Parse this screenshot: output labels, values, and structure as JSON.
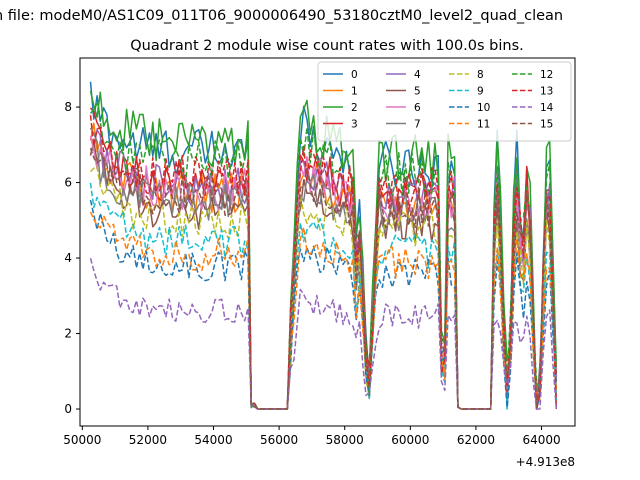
{
  "chart_data": {
    "type": "line",
    "suptitle": "n file: modeM0/AS1C09_011T06_9000006490_53180cztM0_level2_quad_clean",
    "title": "Quadrant 2 module wise count rates with 100.0s bins.",
    "xlabel": "",
    "ylabel": "",
    "x_offset_label": "+4.913e8",
    "xlim": [
      49930,
      65020
    ],
    "ylim": [
      -0.45,
      9.3
    ],
    "x_ticks": [
      50000,
      52000,
      54000,
      56000,
      58000,
      60000,
      62000,
      64000
    ],
    "x_tick_labels": [
      "50000",
      "52000",
      "54000",
      "56000",
      "58000",
      "60000",
      "62000",
      "64000"
    ],
    "y_ticks": [
      0,
      2,
      4,
      6,
      8
    ],
    "y_tick_labels": [
      "0",
      "2",
      "4",
      "6",
      "8"
    ],
    "grid": false,
    "legend_position": "top-right",
    "legend_columns": 4,
    "series": [
      {
        "name": "0",
        "color": "#1f77b4",
        "dash": "solid",
        "base": 6.8,
        "start": 8.2
      },
      {
        "name": "1",
        "color": "#ff7f0e",
        "dash": "solid",
        "base": 5.7,
        "start": 7.5
      },
      {
        "name": "2",
        "color": "#2ca02c",
        "dash": "solid",
        "base": 7.0,
        "start": 8.5
      },
      {
        "name": "3",
        "color": "#d62728",
        "dash": "solid",
        "base": 6.0,
        "start": 7.7
      },
      {
        "name": "4",
        "color": "#9467bd",
        "dash": "solid",
        "base": 5.9,
        "start": 7.3
      },
      {
        "name": "5",
        "color": "#8c564b",
        "dash": "solid",
        "base": 5.2,
        "start": 6.9
      },
      {
        "name": "6",
        "color": "#e377c2",
        "dash": "solid",
        "base": 5.8,
        "start": 7.1
      },
      {
        "name": "7",
        "color": "#7f7f7f",
        "dash": "solid",
        "base": 5.5,
        "start": 7.0
      },
      {
        "name": "8",
        "color": "#bcbd22",
        "dash": "dashed",
        "base": 5.0,
        "start": 6.6
      },
      {
        "name": "9",
        "color": "#17becf",
        "dash": "dashed",
        "base": 4.4,
        "start": 6.0
      },
      {
        "name": "10",
        "color": "#1f77b4",
        "dash": "dashed",
        "base": 3.8,
        "start": 5.3
      },
      {
        "name": "11",
        "color": "#ff7f0e",
        "dash": "dashed",
        "base": 4.1,
        "start": 5.6
      },
      {
        "name": "12",
        "color": "#2ca02c",
        "dash": "dashed",
        "base": 6.5,
        "start": 8.0
      },
      {
        "name": "13",
        "color": "#d62728",
        "dash": "dashed",
        "base": 6.1,
        "start": 7.6
      },
      {
        "name": "14",
        "color": "#9467bd",
        "dash": "dashed",
        "base": 2.6,
        "start": 3.7
      },
      {
        "name": "15",
        "color": "#8c564b",
        "dash": "dashed",
        "base": 5.6,
        "start": 7.2
      }
    ]
  }
}
